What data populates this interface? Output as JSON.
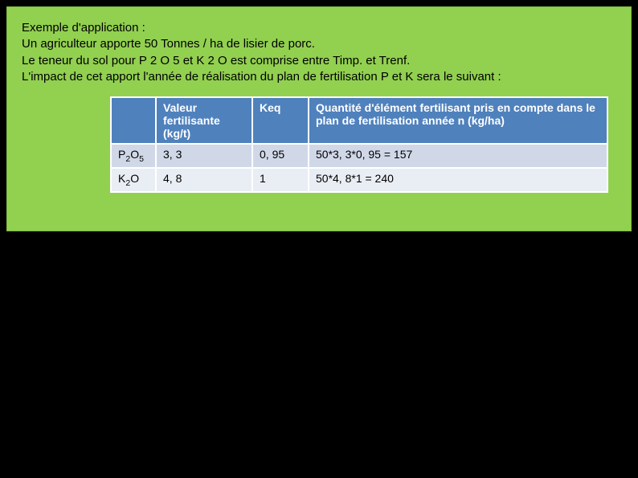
{
  "intro": {
    "title": "Exemple d'application :",
    "line1": "Un agriculteur apporte 50 Tonnes / ha de lisier de porc.",
    "line2": "Le teneur du sol pour P 2 O 5 et K 2 O est comprise entre Timp. et Trenf.",
    "line3": "L'impact de cet apport l'année de réalisation du plan de fertilisation P et K sera le suivant :"
  },
  "table": {
    "columns": {
      "blank": "",
      "val": "Valeur fertilisante (kg/t)",
      "keq": "Keq",
      "qty": "Quantité d'élément fertilisant pris en compte dans le plan de fertilisation année n (kg/ha)"
    },
    "rows": [
      {
        "name_html": "P<sub>2</sub>O<sub>5</sub>",
        "val": "3, 3",
        "keq": "0, 95",
        "qty": "50*3, 3*0, 95  = 157"
      },
      {
        "name_html": "K<sub>2</sub>O",
        "val": "4, 8",
        "keq": "1",
        "qty": "50*4, 8*1 = 240"
      }
    ],
    "header_bg": "#4f81bd",
    "header_fg": "#ffffff",
    "row_bg_odd": "#d0d8e8",
    "row_bg_even": "#e9edf4",
    "border_color": "#ffffff",
    "panel_bg": "#92d050",
    "page_bg": "#000000",
    "font_size_body": 15,
    "font_size_cell": 14
  }
}
